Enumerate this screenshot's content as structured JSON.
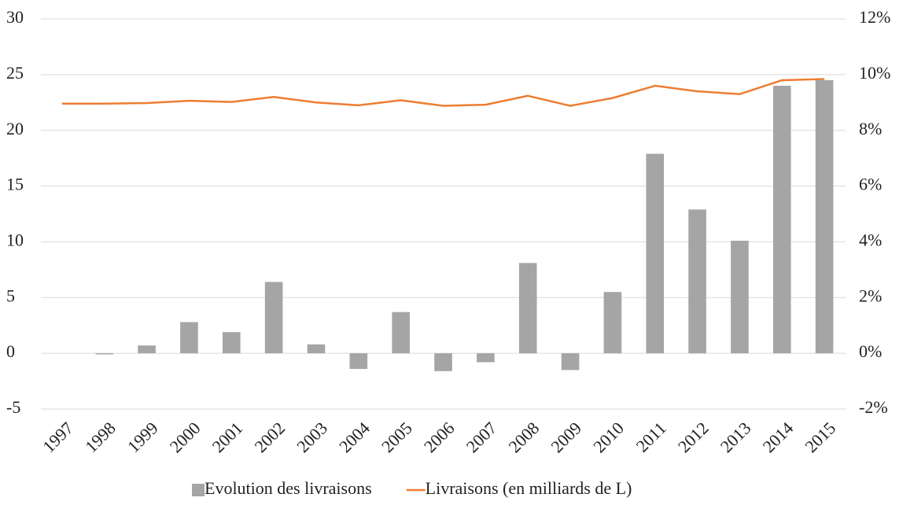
{
  "chart_data": {
    "type": "bar-line",
    "categories": [
      "1997",
      "1998",
      "1999",
      "2000",
      "2001",
      "2002",
      "2003",
      "2004",
      "2005",
      "2006",
      "2007",
      "2008",
      "2009",
      "2010",
      "2011",
      "2012",
      "2013",
      "2014",
      "2015"
    ],
    "series": [
      {
        "name": "Evolution des livraisons",
        "type": "bar",
        "axis": "y2",
        "color": "#a5a5a5",
        "values": [
          null,
          -0.04,
          0.28,
          1.12,
          0.76,
          2.56,
          0.32,
          -0.56,
          1.48,
          -0.64,
          -0.32,
          3.24,
          -0.6,
          2.2,
          7.16,
          5.16,
          4.04,
          9.6,
          9.8
        ]
      },
      {
        "name": "Livraisons (en milliards de L)",
        "type": "line",
        "color": "#ed7d31",
        "values": [
          22.4,
          22.4,
          22.45,
          22.65,
          22.55,
          23.0,
          22.5,
          22.25,
          22.7,
          22.2,
          22.3,
          23.1,
          22.2,
          22.9,
          24.0,
          23.5,
          23.25,
          24.5,
          24.6
        ]
      }
    ],
    "ylim": [
      -5,
      30
    ],
    "yticks": [
      -5,
      0,
      5,
      10,
      15,
      20,
      25,
      30
    ],
    "y2lim": [
      -2,
      12
    ],
    "y2ticks": [
      {
        "value": -2,
        "label": "-2%"
      },
      {
        "value": 0,
        "label": "0%"
      },
      {
        "value": 2,
        "label": "2%"
      },
      {
        "value": 4,
        "label": "4%"
      },
      {
        "value": 6,
        "label": "6%"
      },
      {
        "value": 8,
        "label": "8%"
      },
      {
        "value": 10,
        "label": "10%"
      },
      {
        "value": 12,
        "label": "12%"
      }
    ],
    "grid": true,
    "legend": "bottom"
  }
}
